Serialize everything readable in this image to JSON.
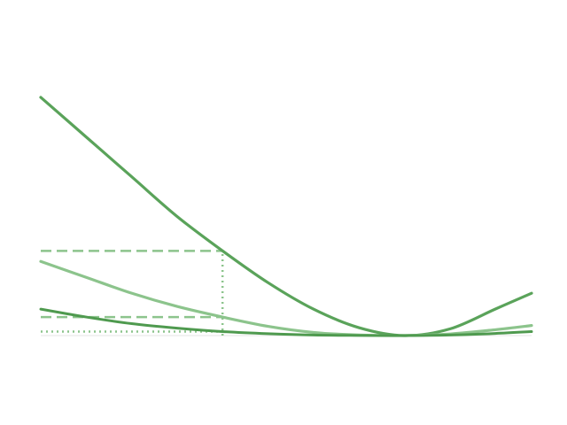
{
  "chart_data": {
    "type": "line",
    "title": "",
    "xlabel": "",
    "ylabel": "",
    "xlim": [
      0,
      5.4
    ],
    "ylim": [
      0,
      10
    ],
    "grid": false,
    "legend": "none",
    "x": [
      0,
      0.5,
      1.0,
      1.5,
      2.0,
      2.5,
      3.0,
      3.5,
      4.0,
      4.5,
      5.0,
      5.4
    ],
    "series": [
      {
        "values": [
          9.0,
          7.5,
          6.0,
          4.5,
          3.2,
          2.0,
          1.0,
          0.3,
          0.0,
          0.25,
          1.0,
          1.6
        ],
        "color": "#5aa35a",
        "width": 3.2,
        "opacity": 1.0
      },
      {
        "values": [
          2.8,
          2.2,
          1.6,
          1.1,
          0.7,
          0.35,
          0.12,
          0.02,
          0.0,
          0.06,
          0.22,
          0.38
        ],
        "color": "#8cc48c",
        "width": 3.2,
        "opacity": 1.0
      },
      {
        "values": [
          1.0,
          0.7,
          0.45,
          0.28,
          0.15,
          0.07,
          0.02,
          0.005,
          0.0,
          0.02,
          0.08,
          0.15
        ],
        "color": "#4f9a4f",
        "width": 3.0,
        "opacity": 1.0
      }
    ],
    "guides": [
      {
        "type": "hline",
        "y": 3.2,
        "x_from": 0,
        "x_to": 2.0,
        "style": "dashed",
        "color": "#8cc48c"
      },
      {
        "type": "hline",
        "y": 0.7,
        "x_from": 0,
        "x_to": 2.0,
        "style": "dashed",
        "color": "#8cc48c"
      },
      {
        "type": "hline",
        "y": 0.15,
        "x_from": 0,
        "x_to": 2.0,
        "style": "dotted",
        "color": "#8cc48c"
      },
      {
        "type": "vline",
        "x": 2.0,
        "y_from": 0,
        "y_to": 3.2,
        "style": "dotted",
        "color": "#8cc48c"
      }
    ],
    "baseline_color": "#e6e6e6"
  }
}
